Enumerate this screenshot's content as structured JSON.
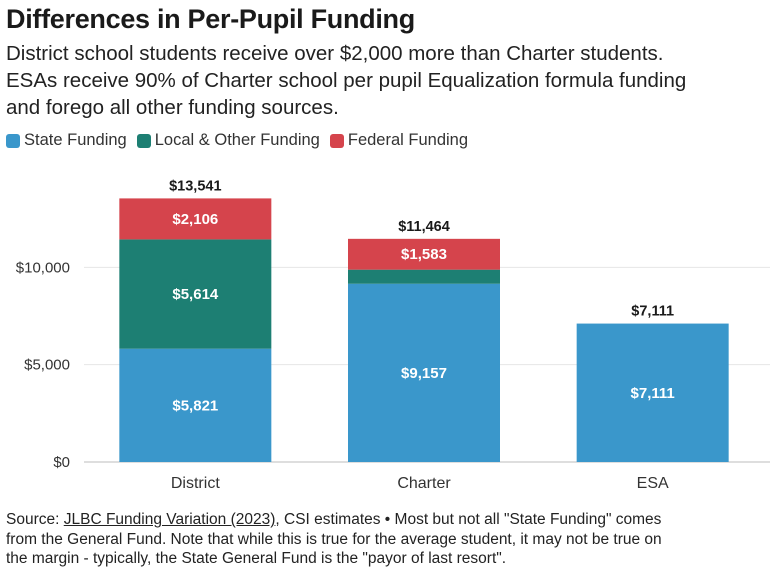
{
  "title": "Differences in Per-Pupil Funding",
  "subtitle": {
    "line1": "District school students receive over $2,000 more than Charter students.",
    "line2": "ESAs receive 90% of Charter school per pupil Equalization formula funding",
    "line3": "and forego all other funding sources."
  },
  "legend": [
    {
      "label": "State Funding",
      "color": "#3a97cb"
    },
    {
      "label": "Local & Other Funding",
      "color": "#1d7f73"
    },
    {
      "label": "Federal Funding",
      "color": "#d5444c"
    }
  ],
  "chart_data": {
    "type": "bar",
    "stacked": true,
    "categories": [
      "District",
      "Charter",
      "ESA"
    ],
    "series": [
      {
        "name": "State Funding",
        "color": "#3a97cb",
        "values": [
          5821,
          9157,
          7111
        ],
        "labels": [
          "$5,821",
          "$9,157",
          "$7,111"
        ]
      },
      {
        "name": "Local & Other Funding",
        "color": "#1d7f73",
        "values": [
          5614,
          724,
          0
        ],
        "labels": [
          "$5,614",
          "",
          ""
        ]
      },
      {
        "name": "Federal Funding",
        "color": "#d5444c",
        "values": [
          2106,
          1583,
          0
        ],
        "labels": [
          "$2,106",
          "$1,583",
          ""
        ]
      }
    ],
    "totals": [
      13541,
      11464,
      7111
    ],
    "total_labels": [
      "$13,541",
      "$11,464",
      "$7,111"
    ],
    "yticks": [
      0,
      5000,
      10000
    ],
    "ytick_labels": [
      "$0",
      "$5,000",
      "$10,000"
    ],
    "ylim": [
      0,
      15000
    ],
    "grid": true
  },
  "footer": {
    "source_prefix": "Source: ",
    "source_link": "JLBC Funding Variation (2023)",
    "line1_rest": ", CSI estimates • Most but not all \"State Funding\" comes",
    "line2": "from the General Fund. Note that while this is true for the average student, it may not be true on",
    "line3": "the margin - typically, the State General Fund is the \"payor of last resort\"."
  }
}
